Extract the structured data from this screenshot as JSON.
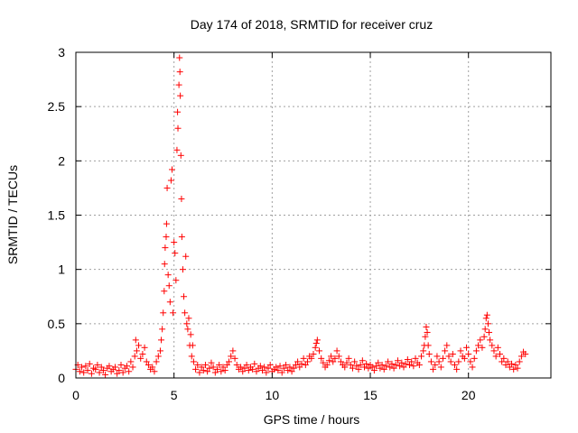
{
  "chart_data": {
    "type": "scatter",
    "title": "Day 174 of 2018, SRMTID for receiver cruz",
    "xlabel": "GPS time / hours",
    "ylabel": "SRMTID / TECUs",
    "xlim": [
      0,
      24.2
    ],
    "ylim": [
      0,
      3
    ],
    "xticks": [
      0,
      5,
      10,
      15,
      20
    ],
    "yticks": [
      0,
      0.5,
      1,
      1.5,
      2,
      2.5,
      3
    ],
    "xtick_labels": [
      "0",
      "5",
      "10",
      "15",
      "20"
    ],
    "ytick_labels": [
      "0",
      "0.5",
      "1",
      "1.5",
      "2",
      "2.5",
      "3"
    ],
    "grid": true,
    "marker": "+",
    "series": [
      {
        "name": "SRMTID",
        "color": "#ff0000",
        "points": [
          [
            0.0,
            0.08
          ],
          [
            0.1,
            0.12
          ],
          [
            0.2,
            0.06
          ],
          [
            0.3,
            0.1
          ],
          [
            0.4,
            0.05
          ],
          [
            0.5,
            0.11
          ],
          [
            0.6,
            0.07
          ],
          [
            0.7,
            0.13
          ],
          [
            0.8,
            0.04
          ],
          [
            0.9,
            0.09
          ],
          [
            1.0,
            0.08
          ],
          [
            1.1,
            0.12
          ],
          [
            1.2,
            0.05
          ],
          [
            1.3,
            0.1
          ],
          [
            1.4,
            0.07
          ],
          [
            1.5,
            0.03
          ],
          [
            1.6,
            0.09
          ],
          [
            1.7,
            0.11
          ],
          [
            1.8,
            0.06
          ],
          [
            1.9,
            0.08
          ],
          [
            2.0,
            0.1
          ],
          [
            2.1,
            0.04
          ],
          [
            2.2,
            0.07
          ],
          [
            2.3,
            0.12
          ],
          [
            2.4,
            0.05
          ],
          [
            2.5,
            0.09
          ],
          [
            2.6,
            0.11
          ],
          [
            2.7,
            0.06
          ],
          [
            2.8,
            0.15
          ],
          [
            2.9,
            0.1
          ],
          [
            3.0,
            0.2
          ],
          [
            3.05,
            0.35
          ],
          [
            3.1,
            0.25
          ],
          [
            3.2,
            0.3
          ],
          [
            3.3,
            0.18
          ],
          [
            3.4,
            0.22
          ],
          [
            3.5,
            0.28
          ],
          [
            3.6,
            0.15
          ],
          [
            3.7,
            0.12
          ],
          [
            3.8,
            0.08
          ],
          [
            3.9,
            0.1
          ],
          [
            4.0,
            0.06
          ],
          [
            4.1,
            0.15
          ],
          [
            4.2,
            0.2
          ],
          [
            4.3,
            0.25
          ],
          [
            4.35,
            0.35
          ],
          [
            4.4,
            0.45
          ],
          [
            4.45,
            0.6
          ],
          [
            4.5,
            0.8
          ],
          [
            4.52,
            1.05
          ],
          [
            4.55,
            1.2
          ],
          [
            4.6,
            1.3
          ],
          [
            4.62,
            1.42
          ],
          [
            4.65,
            1.75
          ],
          [
            4.7,
            0.95
          ],
          [
            4.75,
            0.85
          ],
          [
            4.8,
            0.7
          ],
          [
            4.85,
            1.82
          ],
          [
            4.9,
            1.92
          ],
          [
            4.95,
            0.6
          ],
          [
            5.0,
            1.25
          ],
          [
            5.05,
            1.15
          ],
          [
            5.1,
            0.9
          ],
          [
            5.15,
            2.1
          ],
          [
            5.18,
            2.45
          ],
          [
            5.2,
            2.3
          ],
          [
            5.25,
            2.7
          ],
          [
            5.28,
            2.95
          ],
          [
            5.3,
            2.82
          ],
          [
            5.32,
            2.6
          ],
          [
            5.35,
            2.05
          ],
          [
            5.38,
            1.65
          ],
          [
            5.4,
            1.3
          ],
          [
            5.45,
            1.0
          ],
          [
            5.5,
            0.75
          ],
          [
            5.55,
            0.6
          ],
          [
            5.6,
            1.12
          ],
          [
            5.65,
            0.5
          ],
          [
            5.7,
            0.45
          ],
          [
            5.75,
            0.55
          ],
          [
            5.8,
            0.3
          ],
          [
            5.85,
            0.4
          ],
          [
            5.9,
            0.2
          ],
          [
            5.95,
            0.3
          ],
          [
            6.0,
            0.15
          ],
          [
            6.1,
            0.08
          ],
          [
            6.2,
            0.12
          ],
          [
            6.3,
            0.05
          ],
          [
            6.4,
            0.1
          ],
          [
            6.5,
            0.07
          ],
          [
            6.6,
            0.12
          ],
          [
            6.7,
            0.06
          ],
          [
            6.8,
            0.09
          ],
          [
            6.9,
            0.14
          ],
          [
            7.0,
            0.1
          ],
          [
            7.1,
            0.05
          ],
          [
            7.2,
            0.08
          ],
          [
            7.3,
            0.12
          ],
          [
            7.4,
            0.06
          ],
          [
            7.5,
            0.1
          ],
          [
            7.6,
            0.07
          ],
          [
            7.7,
            0.12
          ],
          [
            7.8,
            0.15
          ],
          [
            7.9,
            0.2
          ],
          [
            8.0,
            0.25
          ],
          [
            8.1,
            0.18
          ],
          [
            8.2,
            0.12
          ],
          [
            8.3,
            0.08
          ],
          [
            8.4,
            0.1
          ],
          [
            8.5,
            0.06
          ],
          [
            8.6,
            0.09
          ],
          [
            8.7,
            0.12
          ],
          [
            8.8,
            0.07
          ],
          [
            8.9,
            0.1
          ],
          [
            9.0,
            0.08
          ],
          [
            9.1,
            0.13
          ],
          [
            9.2,
            0.06
          ],
          [
            9.3,
            0.09
          ],
          [
            9.4,
            0.11
          ],
          [
            9.5,
            0.07
          ],
          [
            9.6,
            0.1
          ],
          [
            9.7,
            0.05
          ],
          [
            9.8,
            0.09
          ],
          [
            9.9,
            0.12
          ],
          [
            10.0,
            0.06
          ],
          [
            10.1,
            0.08
          ],
          [
            10.2,
            0.1
          ],
          [
            10.3,
            0.07
          ],
          [
            10.4,
            0.11
          ],
          [
            10.5,
            0.05
          ],
          [
            10.6,
            0.09
          ],
          [
            10.7,
            0.12
          ],
          [
            10.8,
            0.07
          ],
          [
            10.9,
            0.1
          ],
          [
            11.0,
            0.06
          ],
          [
            11.1,
            0.09
          ],
          [
            11.2,
            0.12
          ],
          [
            11.3,
            0.15
          ],
          [
            11.4,
            0.1
          ],
          [
            11.5,
            0.13
          ],
          [
            11.6,
            0.18
          ],
          [
            11.7,
            0.12
          ],
          [
            11.8,
            0.15
          ],
          [
            11.9,
            0.2
          ],
          [
            12.0,
            0.18
          ],
          [
            12.1,
            0.22
          ],
          [
            12.2,
            0.28
          ],
          [
            12.25,
            0.32
          ],
          [
            12.3,
            0.35
          ],
          [
            12.4,
            0.25
          ],
          [
            12.5,
            0.18
          ],
          [
            12.6,
            0.14
          ],
          [
            12.7,
            0.1
          ],
          [
            12.8,
            0.12
          ],
          [
            12.9,
            0.16
          ],
          [
            13.0,
            0.2
          ],
          [
            13.1,
            0.15
          ],
          [
            13.2,
            0.18
          ],
          [
            13.3,
            0.25
          ],
          [
            13.4,
            0.2
          ],
          [
            13.5,
            0.15
          ],
          [
            13.6,
            0.12
          ],
          [
            13.7,
            0.1
          ],
          [
            13.8,
            0.14
          ],
          [
            13.9,
            0.18
          ],
          [
            14.0,
            0.12
          ],
          [
            14.1,
            0.09
          ],
          [
            14.2,
            0.15
          ],
          [
            14.3,
            0.11
          ],
          [
            14.4,
            0.08
          ],
          [
            14.5,
            0.12
          ],
          [
            14.6,
            0.16
          ],
          [
            14.7,
            0.1
          ],
          [
            14.8,
            0.13
          ],
          [
            14.9,
            0.09
          ],
          [
            15.0,
            0.12
          ],
          [
            15.1,
            0.1
          ],
          [
            15.2,
            0.07
          ],
          [
            15.3,
            0.11
          ],
          [
            15.4,
            0.14
          ],
          [
            15.5,
            0.09
          ],
          [
            15.6,
            0.12
          ],
          [
            15.7,
            0.08
          ],
          [
            15.8,
            0.11
          ],
          [
            15.9,
            0.15
          ],
          [
            16.0,
            0.1
          ],
          [
            16.1,
            0.13
          ],
          [
            16.2,
            0.09
          ],
          [
            16.3,
            0.12
          ],
          [
            16.4,
            0.16
          ],
          [
            16.5,
            0.11
          ],
          [
            16.6,
            0.14
          ],
          [
            16.7,
            0.1
          ],
          [
            16.8,
            0.13
          ],
          [
            16.9,
            0.17
          ],
          [
            17.0,
            0.12
          ],
          [
            17.1,
            0.15
          ],
          [
            17.2,
            0.11
          ],
          [
            17.3,
            0.18
          ],
          [
            17.4,
            0.14
          ],
          [
            17.5,
            0.12
          ],
          [
            17.6,
            0.2
          ],
          [
            17.7,
            0.25
          ],
          [
            17.75,
            0.3
          ],
          [
            17.8,
            0.38
          ],
          [
            17.85,
            0.47
          ],
          [
            17.9,
            0.42
          ],
          [
            17.95,
            0.3
          ],
          [
            18.0,
            0.22
          ],
          [
            18.1,
            0.15
          ],
          [
            18.2,
            0.08
          ],
          [
            18.3,
            0.12
          ],
          [
            18.4,
            0.2
          ],
          [
            18.5,
            0.15
          ],
          [
            18.6,
            0.1
          ],
          [
            18.7,
            0.18
          ],
          [
            18.8,
            0.25
          ],
          [
            18.9,
            0.3
          ],
          [
            19.0,
            0.2
          ],
          [
            19.1,
            0.15
          ],
          [
            19.2,
            0.22
          ],
          [
            19.3,
            0.12
          ],
          [
            19.4,
            0.08
          ],
          [
            19.5,
            0.15
          ],
          [
            19.6,
            0.25
          ],
          [
            19.7,
            0.2
          ],
          [
            19.8,
            0.18
          ],
          [
            19.9,
            0.28
          ],
          [
            20.0,
            0.22
          ],
          [
            20.1,
            0.15
          ],
          [
            20.2,
            0.1
          ],
          [
            20.3,
            0.18
          ],
          [
            20.4,
            0.25
          ],
          [
            20.5,
            0.3
          ],
          [
            20.6,
            0.35
          ],
          [
            20.7,
            0.28
          ],
          [
            20.8,
            0.38
          ],
          [
            20.85,
            0.45
          ],
          [
            20.9,
            0.55
          ],
          [
            20.95,
            0.58
          ],
          [
            21.0,
            0.5
          ],
          [
            21.05,
            0.42
          ],
          [
            21.1,
            0.35
          ],
          [
            21.2,
            0.3
          ],
          [
            21.3,
            0.25
          ],
          [
            21.4,
            0.2
          ],
          [
            21.5,
            0.28
          ],
          [
            21.6,
            0.22
          ],
          [
            21.7,
            0.15
          ],
          [
            21.8,
            0.18
          ],
          [
            21.9,
            0.12
          ],
          [
            22.0,
            0.15
          ],
          [
            22.1,
            0.1
          ],
          [
            22.2,
            0.13
          ],
          [
            22.3,
            0.08
          ],
          [
            22.4,
            0.12
          ],
          [
            22.5,
            0.09
          ],
          [
            22.6,
            0.15
          ],
          [
            22.7,
            0.2
          ],
          [
            22.8,
            0.24
          ],
          [
            22.9,
            0.22
          ]
        ]
      }
    ]
  }
}
